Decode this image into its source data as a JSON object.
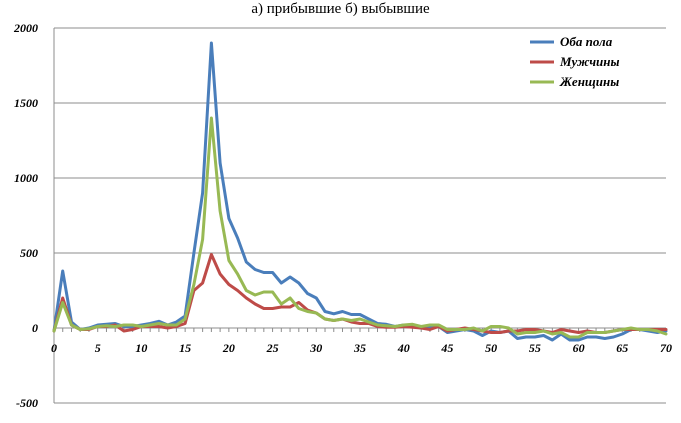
{
  "chart_data": {
    "type": "line",
    "title": "а) прибывшие б) выбывшие",
    "xlabel": "",
    "ylabel": "",
    "xlim": [
      0,
      70
    ],
    "ylim": [
      -500,
      2000
    ],
    "xticks": [
      0,
      5,
      10,
      15,
      20,
      25,
      30,
      35,
      40,
      45,
      50,
      55,
      60,
      65,
      70
    ],
    "yticks": [
      -500,
      0,
      500,
      1000,
      1500,
      2000
    ],
    "grid": "horizontal",
    "legend_position": "top-right",
    "x": [
      0,
      1,
      2,
      3,
      4,
      5,
      6,
      7,
      8,
      9,
      10,
      11,
      12,
      13,
      14,
      15,
      16,
      17,
      18,
      19,
      20,
      21,
      22,
      23,
      24,
      25,
      26,
      27,
      28,
      29,
      30,
      31,
      32,
      33,
      34,
      35,
      36,
      37,
      38,
      39,
      40,
      41,
      42,
      43,
      44,
      45,
      46,
      47,
      48,
      49,
      50,
      51,
      52,
      53,
      54,
      55,
      56,
      57,
      58,
      59,
      60,
      61,
      62,
      63,
      64,
      65,
      66,
      67,
      68,
      69,
      70
    ],
    "series": [
      {
        "name": "Оба пола",
        "color": "#4a7ebb",
        "values": [
          -20,
          380,
          40,
          -10,
          0,
          20,
          25,
          30,
          10,
          10,
          20,
          30,
          45,
          20,
          40,
          80,
          500,
          900,
          1900,
          1100,
          730,
          600,
          440,
          390,
          370,
          370,
          300,
          340,
          300,
          230,
          200,
          110,
          95,
          110,
          90,
          90,
          60,
          30,
          25,
          10,
          20,
          10,
          0,
          0,
          10,
          -30,
          -20,
          -10,
          -20,
          -50,
          -20,
          -30,
          -20,
          -70,
          -60,
          -60,
          -50,
          -80,
          -40,
          -80,
          -80,
          -60,
          -60,
          -70,
          -60,
          -40,
          -10,
          -10,
          -20,
          -30,
          -20
        ]
      },
      {
        "name": "Мужчины",
        "color": "#be4b48",
        "values": [
          -20,
          200,
          20,
          -10,
          -10,
          10,
          10,
          20,
          -20,
          -10,
          10,
          10,
          10,
          0,
          10,
          30,
          250,
          300,
          490,
          360,
          290,
          250,
          200,
          160,
          130,
          130,
          140,
          140,
          170,
          120,
          100,
          60,
          50,
          60,
          40,
          30,
          30,
          10,
          5,
          5,
          10,
          5,
          0,
          -10,
          10,
          -20,
          -10,
          0,
          -10,
          -20,
          -30,
          -30,
          -20,
          -20,
          -10,
          -10,
          -20,
          -30,
          -10,
          -20,
          -30,
          -20,
          -30,
          -30,
          -20,
          -10,
          -10,
          -10,
          -10,
          -10,
          -10
        ]
      },
      {
        "name": "Женщины",
        "color": "#98b954",
        "values": [
          -20,
          170,
          20,
          -10,
          -5,
          10,
          15,
          10,
          20,
          20,
          10,
          20,
          30,
          20,
          20,
          60,
          290,
          590,
          1400,
          780,
          450,
          360,
          250,
          220,
          240,
          240,
          160,
          200,
          130,
          110,
          100,
          60,
          50,
          60,
          50,
          60,
          40,
          20,
          15,
          10,
          20,
          25,
          10,
          20,
          20,
          -10,
          -10,
          -10,
          0,
          -20,
          10,
          10,
          0,
          -40,
          -30,
          -30,
          -20,
          -40,
          -30,
          -60,
          -60,
          -30,
          -30,
          -30,
          -20,
          -10,
          0,
          -10,
          -10,
          -20,
          -40
        ]
      }
    ]
  }
}
